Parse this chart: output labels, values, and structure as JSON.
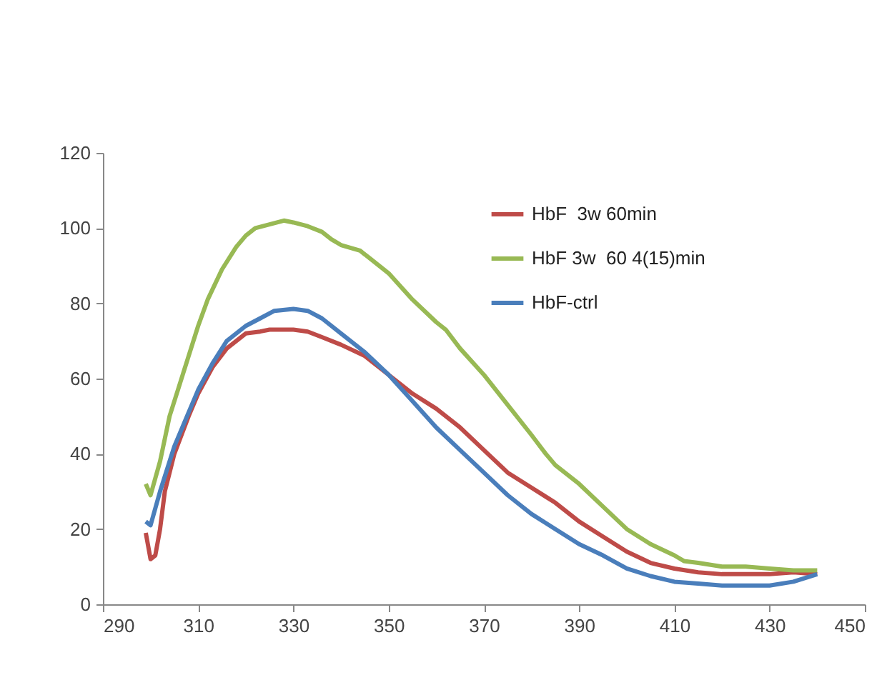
{
  "chart_data": {
    "type": "line",
    "xlim": [
      290,
      450
    ],
    "xticks": [
      290,
      310,
      330,
      350,
      370,
      390,
      410,
      430,
      450
    ],
    "ylim": [
      0,
      120
    ],
    "yticks": [
      0,
      20,
      40,
      60,
      80,
      100,
      120
    ],
    "grid": false,
    "legend": "top right",
    "marker": "none",
    "line_style": "solid",
    "series": [
      {
        "name": "HbF  3w 60min",
        "color": "#be4b48",
        "x": [
          299,
          300,
          301,
          302,
          303,
          305,
          308,
          310,
          313,
          316,
          318,
          320,
          323,
          325,
          330,
          333,
          336,
          340,
          345,
          350,
          355,
          360,
          365,
          370,
          375,
          380,
          385,
          390,
          395,
          400,
          405,
          410,
          415,
          420,
          430,
          435,
          440
        ],
        "values": [
          19,
          12,
          13,
          20,
          30,
          40,
          50,
          56,
          63,
          68,
          70,
          72,
          72.5,
          73,
          73,
          72.5,
          71,
          69,
          66,
          61,
          56,
          52,
          47,
          41,
          35,
          31,
          27,
          22,
          18,
          14,
          11,
          9.5,
          8.5,
          8,
          8,
          8.5,
          8
        ]
      },
      {
        "name": "HbF 3w  60 4(15)min",
        "color": "#98b954",
        "x": [
          299,
          300,
          302,
          304,
          306,
          308,
          310,
          312,
          315,
          318,
          320,
          322,
          325,
          328,
          330,
          333,
          336,
          338,
          340,
          344,
          346,
          350,
          355,
          360,
          362,
          365,
          370,
          375,
          380,
          383,
          385,
          390,
          395,
          400,
          405,
          410,
          412,
          415,
          420,
          425,
          430,
          435,
          440
        ],
        "values": [
          32,
          29,
          38,
          50,
          58,
          66,
          74,
          81,
          89,
          95,
          98,
          100,
          101,
          102,
          101.5,
          100.5,
          99,
          97,
          95.5,
          94,
          92,
          88,
          81,
          75,
          73,
          68,
          61,
          53,
          45,
          40,
          37,
          32,
          26,
          20,
          16,
          13,
          11.5,
          11,
          10,
          10,
          9.5,
          9,
          9
        ]
      },
      {
        "name": "HbF-ctrl",
        "color": "#4a7ebb",
        "x": [
          299,
          300,
          302,
          305,
          308,
          310,
          313,
          316,
          320,
          323,
          326,
          330,
          333,
          336,
          340,
          345,
          350,
          355,
          360,
          365,
          370,
          375,
          380,
          385,
          390,
          395,
          400,
          405,
          410,
          415,
          420,
          425,
          430,
          435,
          440
        ],
        "values": [
          22,
          21,
          30,
          42,
          51,
          57,
          64,
          70,
          74,
          76,
          78,
          78.5,
          78,
          76,
          72,
          67,
          61,
          54,
          47,
          41,
          35,
          29,
          24,
          20,
          16,
          13,
          9.5,
          7.5,
          6,
          5.5,
          5,
          5,
          5,
          6,
          8
        ]
      }
    ]
  }
}
